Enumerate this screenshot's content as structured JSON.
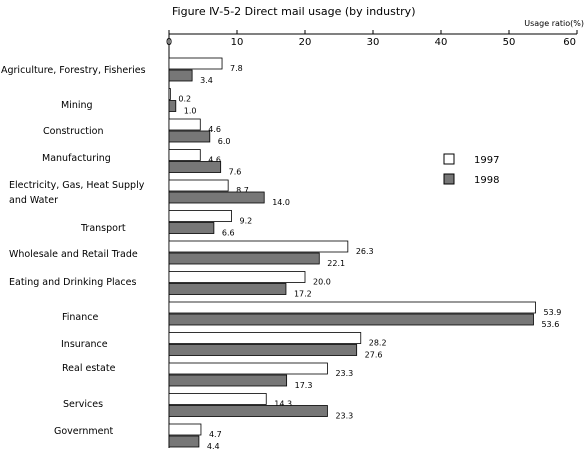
{
  "chart_data": {
    "type": "bar",
    "orientation": "horizontal",
    "title": "Figure Ⅳ-5-2 Direct mail usage (by industry)",
    "axis_unit": "Usage ratio(%)",
    "xlim": [
      0,
      60
    ],
    "ticks": [
      "0",
      "10",
      "20",
      "30",
      "40",
      "50",
      "60"
    ],
    "grid": false,
    "legend_position": "right",
    "categories": [
      [
        "Agriculture, Forestry, Fisheries"
      ],
      [
        "Mining"
      ],
      [
        "Construction"
      ],
      [
        "Manufacturing"
      ],
      [
        "Electricity, Gas, Heat Supply",
        "and Water"
      ],
      [
        "Transport"
      ],
      [
        "Wholesale and Retail Trade"
      ],
      [
        "Eating and Drinking Places"
      ],
      [
        "Finance"
      ],
      [
        "Insurance"
      ],
      [
        "Real estate"
      ],
      [
        "Services"
      ],
      [
        "Government"
      ]
    ],
    "series": [
      {
        "name": "1997",
        "color": "#ffffff",
        "values": [
          7.8,
          0.2,
          4.6,
          4.6,
          8.7,
          9.2,
          26.3,
          20.0,
          53.9,
          28.2,
          23.3,
          14.3,
          4.7
        ],
        "labels": [
          "7.8",
          "0.2",
          "4.6",
          "4.6",
          "8.7",
          "9.2",
          "26.3",
          "20.0",
          "53.9",
          "28.2",
          "23.3",
          "14.3",
          "4.7"
        ]
      },
      {
        "name": "1998",
        "color": "#777777",
        "values": [
          3.4,
          1.0,
          6.0,
          7.6,
          14.0,
          6.6,
          22.1,
          17.2,
          53.6,
          27.6,
          17.3,
          23.3,
          4.4
        ],
        "labels": [
          "3.4",
          "1.0",
          "6.0",
          "7.6",
          "14.0",
          "6.6",
          "22.1",
          "17.2",
          "53.6",
          "27.6",
          "17.3",
          "23.3",
          "4.4"
        ]
      }
    ]
  }
}
